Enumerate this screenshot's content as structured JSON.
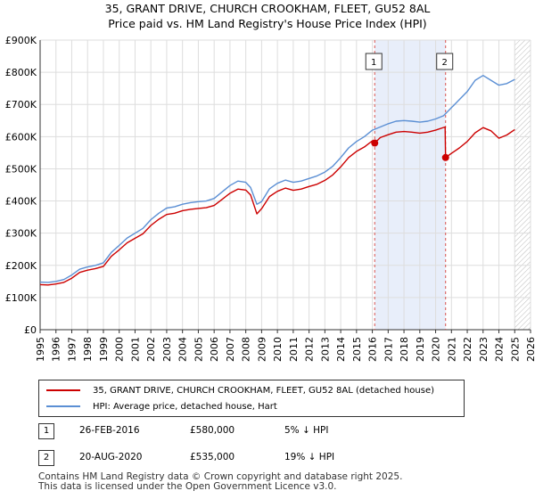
{
  "title_line1": "35, GRANT DRIVE, CHURCH CROOKHAM, FLEET, GU52 8AL",
  "title_line2": "Price paid vs. HM Land Registry's House Price Index (HPI)",
  "colors": {
    "property": "#cc0000",
    "hpi": "#5b8fd4",
    "shade": "#e8eefa",
    "marker_line": "#d9534f"
  },
  "legend": {
    "property_label": "35, GRANT DRIVE, CHURCH CROOKHAM, FLEET, GU52 8AL (detached house)",
    "hpi_label": "HPI: Average price, detached house, Hart"
  },
  "transactions": [
    {
      "num": "1",
      "date": "26-FEB-2016",
      "price": "£580,000",
      "hpi_diff": "5% ↓ HPI"
    },
    {
      "num": "2",
      "date": "20-AUG-2020",
      "price": "£535,000",
      "hpi_diff": "19% ↓ HPI"
    }
  ],
  "footer_line1": "Contains HM Land Registry data © Crown copyright and database right 2025.",
  "footer_line2": "This data is licensed under the Open Government Licence v3.0.",
  "chart_data": {
    "type": "line",
    "title": "35, GRANT DRIVE, CHURCH CROOKHAM, FLEET, GU52 8AL",
    "subtitle": "Price paid vs. HM Land Registry's House Price Index (HPI)",
    "xlabel": "",
    "ylabel": "",
    "xlim": [
      1995,
      2026
    ],
    "ylim": [
      0,
      900000
    ],
    "y_ticks": [
      {
        "value": 0,
        "label": "£0"
      },
      {
        "value": 100000,
        "label": "£100K"
      },
      {
        "value": 200000,
        "label": "£200K"
      },
      {
        "value": 300000,
        "label": "£300K"
      },
      {
        "value": 400000,
        "label": "£400K"
      },
      {
        "value": 500000,
        "label": "£500K"
      },
      {
        "value": 600000,
        "label": "£600K"
      },
      {
        "value": 700000,
        "label": "£700K"
      },
      {
        "value": 800000,
        "label": "£800K"
      },
      {
        "value": 900000,
        "label": "£900K"
      }
    ],
    "x_ticks": [
      "1995",
      "1996",
      "1997",
      "1998",
      "1999",
      "2000",
      "2001",
      "2002",
      "2003",
      "2004",
      "2005",
      "2006",
      "2007",
      "2008",
      "2009",
      "2010",
      "2011",
      "2012",
      "2013",
      "2014",
      "2015",
      "2016",
      "2017",
      "2018",
      "2019",
      "2020",
      "2021",
      "2022",
      "2023",
      "2024",
      "2025",
      "2026"
    ],
    "grid": true,
    "shaded_region": {
      "x_start": 2016.15,
      "x_end": 2020.63
    },
    "hatched_region": {
      "x_start": 2025.0,
      "x_end": 2026
    },
    "markers": [
      {
        "label": "1",
        "x": 2016.15,
        "y": 580000
      },
      {
        "label": "2",
        "x": 2020.63,
        "y": 535000
      }
    ],
    "series": [
      {
        "name": "HPI: Average price, detached house, Hart",
        "color": "#5b8fd4",
        "x": [
          1995.0,
          1995.5,
          1996.0,
          1996.5,
          1997.0,
          1997.5,
          1998.0,
          1998.5,
          1999.0,
          1999.5,
          2000.0,
          2000.5,
          2001.0,
          2001.5,
          2002.0,
          2002.5,
          2003.0,
          2003.5,
          2004.0,
          2004.5,
          2005.0,
          2005.5,
          2006.0,
          2006.5,
          2007.0,
          2007.5,
          2008.0,
          2008.3,
          2008.7,
          2009.0,
          2009.5,
          2010.0,
          2010.5,
          2011.0,
          2011.5,
          2012.0,
          2012.5,
          2013.0,
          2013.5,
          2014.0,
          2014.5,
          2015.0,
          2015.5,
          2016.0,
          2016.5,
          2017.0,
          2017.5,
          2018.0,
          2018.5,
          2019.0,
          2019.5,
          2020.0,
          2020.5,
          2021.0,
          2021.5,
          2022.0,
          2022.5,
          2023.0,
          2023.5,
          2024.0,
          2024.5,
          2025.0
        ],
        "values": [
          148000,
          147000,
          150000,
          156000,
          170000,
          188000,
          195000,
          200000,
          208000,
          240000,
          262000,
          285000,
          300000,
          315000,
          342000,
          362000,
          378000,
          382000,
          390000,
          395000,
          398000,
          400000,
          408000,
          428000,
          448000,
          462000,
          458000,
          442000,
          390000,
          398000,
          438000,
          455000,
          465000,
          458000,
          462000,
          470000,
          478000,
          490000,
          508000,
          535000,
          565000,
          585000,
          600000,
          620000,
          630000,
          640000,
          648000,
          650000,
          648000,
          645000,
          648000,
          655000,
          665000,
          690000,
          715000,
          740000,
          775000,
          790000,
          775000,
          760000,
          765000,
          778000
        ]
      },
      {
        "name": "35, GRANT DRIVE, CHURCH CROOKHAM, FLEET, GU52 8AL (detached house)",
        "color": "#cc0000",
        "x": [
          1995.0,
          1995.5,
          1996.0,
          1996.5,
          1997.0,
          1997.5,
          1998.0,
          1998.5,
          1999.0,
          1999.5,
          2000.0,
          2000.5,
          2001.0,
          2001.5,
          2002.0,
          2002.5,
          2003.0,
          2003.5,
          2004.0,
          2004.5,
          2005.0,
          2005.5,
          2006.0,
          2006.5,
          2007.0,
          2007.5,
          2008.0,
          2008.3,
          2008.7,
          2009.0,
          2009.5,
          2010.0,
          2010.5,
          2011.0,
          2011.5,
          2012.0,
          2012.5,
          2013.0,
          2013.5,
          2014.0,
          2014.5,
          2015.0,
          2015.5,
          2016.0,
          2016.15,
          2016.5,
          2017.0,
          2017.5,
          2018.0,
          2018.5,
          2019.0,
          2019.5,
          2020.0,
          2020.6,
          2020.63,
          2021.0,
          2021.5,
          2022.0,
          2022.5,
          2023.0,
          2023.5,
          2024.0,
          2024.5,
          2025.0
        ],
        "values": [
          140000,
          139000,
          142000,
          147000,
          160000,
          178000,
          185000,
          190000,
          197000,
          228000,
          248000,
          270000,
          284000,
          298000,
          324000,
          343000,
          358000,
          362000,
          370000,
          374000,
          377000,
          379000,
          386000,
          405000,
          424000,
          437000,
          434000,
          419000,
          360000,
          376000,
          414000,
          430000,
          440000,
          433000,
          437000,
          445000,
          452000,
          464000,
          481000,
          506000,
          535000,
          554000,
          568000,
          587000,
          580000,
          597000,
          606000,
          614000,
          616000,
          614000,
          611000,
          614000,
          620000,
          630000,
          535000,
          548000,
          565000,
          585000,
          612000,
          628000,
          618000,
          595000,
          605000,
          622000
        ]
      }
    ]
  }
}
